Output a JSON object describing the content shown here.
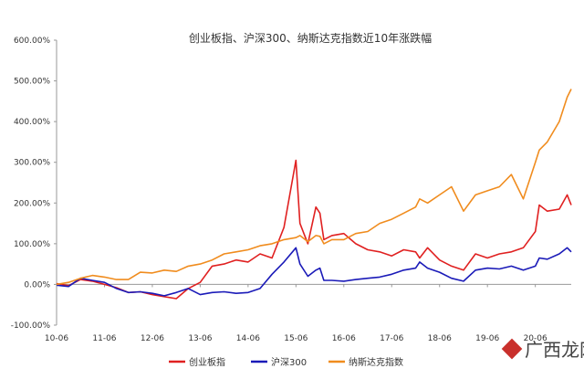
{
  "chart_data": {
    "type": "line",
    "title": "创业板指、沪深300、纳斯达克指数近10年涨跌幅",
    "xlabel": "",
    "ylabel": "",
    "categories": [
      "10-06",
      "11-06",
      "12-06",
      "13-06",
      "14-06",
      "15-06",
      "16-06",
      "17-06",
      "18-06",
      "19-06",
      "20-06"
    ],
    "x_end": "21-03",
    "y_ticks": [
      "-100.00%",
      "0.00%",
      "100.00%",
      "200.00%",
      "300.00%",
      "400.00%",
      "500.00%",
      "600.00%"
    ],
    "ylim": [
      -100,
      600
    ],
    "grid": false,
    "legend_position": "bottom",
    "series": [
      {
        "name": "创业板指",
        "color": "#e02020",
        "points": [
          [
            "10-06",
            2
          ],
          [
            "10-09",
            -3
          ],
          [
            "10-12",
            12
          ],
          [
            "11-03",
            8
          ],
          [
            "11-06",
            0
          ],
          [
            "11-09",
            -8
          ],
          [
            "11-12",
            -20
          ],
          [
            "12-03",
            -18
          ],
          [
            "12-06",
            -25
          ],
          [
            "12-09",
            -30
          ],
          [
            "12-12",
            -35
          ],
          [
            "13-03",
            -10
          ],
          [
            "13-06",
            5
          ],
          [
            "13-09",
            45
          ],
          [
            "13-12",
            50
          ],
          [
            "14-03",
            60
          ],
          [
            "14-06",
            55
          ],
          [
            "14-09",
            75
          ],
          [
            "14-12",
            65
          ],
          [
            "15-03",
            140
          ],
          [
            "15-06",
            305
          ],
          [
            "15-07",
            150
          ],
          [
            "15-09",
            100
          ],
          [
            "15-11",
            190
          ],
          [
            "15-12",
            175
          ],
          [
            "16-01",
            110
          ],
          [
            "16-03",
            120
          ],
          [
            "16-06",
            125
          ],
          [
            "16-09",
            100
          ],
          [
            "16-12",
            85
          ],
          [
            "17-03",
            80
          ],
          [
            "17-06",
            70
          ],
          [
            "17-09",
            85
          ],
          [
            "17-12",
            80
          ],
          [
            "18-01",
            65
          ],
          [
            "18-03",
            90
          ],
          [
            "18-06",
            60
          ],
          [
            "18-09",
            45
          ],
          [
            "18-12",
            35
          ],
          [
            "19-03",
            75
          ],
          [
            "19-06",
            65
          ],
          [
            "19-09",
            75
          ],
          [
            "19-12",
            80
          ],
          [
            "20-03",
            90
          ],
          [
            "20-06",
            130
          ],
          [
            "20-07",
            195
          ],
          [
            "20-09",
            180
          ],
          [
            "20-12",
            185
          ],
          [
            "21-02",
            220
          ],
          [
            "21-03",
            195
          ]
        ]
      },
      {
        "name": "沪深300",
        "color": "#1a1ab8",
        "points": [
          [
            "10-06",
            -2
          ],
          [
            "10-09",
            -5
          ],
          [
            "10-12",
            15
          ],
          [
            "11-03",
            10
          ],
          [
            "11-06",
            5
          ],
          [
            "11-09",
            -10
          ],
          [
            "11-12",
            -20
          ],
          [
            "12-03",
            -18
          ],
          [
            "12-06",
            -22
          ],
          [
            "12-09",
            -28
          ],
          [
            "12-12",
            -20
          ],
          [
            "13-03",
            -10
          ],
          [
            "13-06",
            -25
          ],
          [
            "13-09",
            -20
          ],
          [
            "13-12",
            -18
          ],
          [
            "14-03",
            -22
          ],
          [
            "14-06",
            -20
          ],
          [
            "14-09",
            -10
          ],
          [
            "14-12",
            25
          ],
          [
            "15-03",
            55
          ],
          [
            "15-06",
            90
          ],
          [
            "15-07",
            50
          ],
          [
            "15-09",
            20
          ],
          [
            "15-11",
            35
          ],
          [
            "15-12",
            40
          ],
          [
            "16-01",
            10
          ],
          [
            "16-03",
            10
          ],
          [
            "16-06",
            8
          ],
          [
            "16-09",
            12
          ],
          [
            "16-12",
            15
          ],
          [
            "17-03",
            18
          ],
          [
            "17-06",
            25
          ],
          [
            "17-09",
            35
          ],
          [
            "17-12",
            40
          ],
          [
            "18-01",
            55
          ],
          [
            "18-03",
            40
          ],
          [
            "18-06",
            30
          ],
          [
            "18-09",
            15
          ],
          [
            "18-12",
            8
          ],
          [
            "19-03",
            35
          ],
          [
            "19-06",
            40
          ],
          [
            "19-09",
            38
          ],
          [
            "19-12",
            45
          ],
          [
            "20-03",
            35
          ],
          [
            "20-06",
            45
          ],
          [
            "20-07",
            65
          ],
          [
            "20-09",
            62
          ],
          [
            "20-12",
            75
          ],
          [
            "21-02",
            90
          ],
          [
            "21-03",
            80
          ]
        ]
      },
      {
        "name": "纳斯达克指数",
        "color": "#f08c1e",
        "points": [
          [
            "10-06",
            0
          ],
          [
            "10-09",
            5
          ],
          [
            "10-12",
            15
          ],
          [
            "11-03",
            22
          ],
          [
            "11-06",
            18
          ],
          [
            "11-09",
            12
          ],
          [
            "11-12",
            12
          ],
          [
            "12-03",
            30
          ],
          [
            "12-06",
            28
          ],
          [
            "12-09",
            35
          ],
          [
            "12-12",
            32
          ],
          [
            "13-03",
            45
          ],
          [
            "13-06",
            50
          ],
          [
            "13-09",
            60
          ],
          [
            "13-12",
            75
          ],
          [
            "14-03",
            80
          ],
          [
            "14-06",
            85
          ],
          [
            "14-09",
            95
          ],
          [
            "14-12",
            100
          ],
          [
            "15-03",
            110
          ],
          [
            "15-06",
            115
          ],
          [
            "15-07",
            120
          ],
          [
            "15-09",
            105
          ],
          [
            "15-11",
            120
          ],
          [
            "15-12",
            118
          ],
          [
            "16-01",
            100
          ],
          [
            "16-03",
            110
          ],
          [
            "16-06",
            110
          ],
          [
            "16-09",
            125
          ],
          [
            "16-12",
            130
          ],
          [
            "17-03",
            150
          ],
          [
            "17-06",
            160
          ],
          [
            "17-09",
            175
          ],
          [
            "17-12",
            190
          ],
          [
            "18-01",
            210
          ],
          [
            "18-03",
            200
          ],
          [
            "18-06",
            220
          ],
          [
            "18-09",
            240
          ],
          [
            "18-12",
            180
          ],
          [
            "19-03",
            220
          ],
          [
            "19-06",
            230
          ],
          [
            "19-09",
            240
          ],
          [
            "19-12",
            270
          ],
          [
            "20-03",
            210
          ],
          [
            "20-06",
            300
          ],
          [
            "20-07",
            330
          ],
          [
            "20-09",
            350
          ],
          [
            "20-12",
            400
          ],
          [
            "21-02",
            460
          ],
          [
            "21-03",
            480
          ]
        ]
      }
    ]
  },
  "watermark": {
    "text": "广西龙网"
  }
}
